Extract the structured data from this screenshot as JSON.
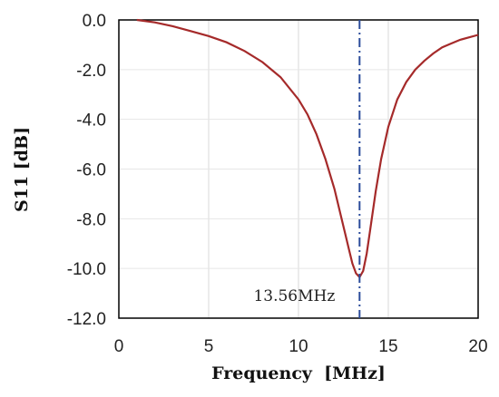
{
  "chart_data": {
    "type": "line",
    "title": "",
    "xlabel": "Frequency  [MHz]",
    "ylabel": "S11 [dB]",
    "xlim": [
      0,
      20
    ],
    "ylim": [
      -12,
      0
    ],
    "xticks": [
      0,
      5,
      10,
      15,
      20
    ],
    "yticks": [
      0,
      -2,
      -4,
      -6,
      -8,
      -10,
      -12
    ],
    "xtick_labels": [
      "0",
      "5",
      "10",
      "15",
      "20"
    ],
    "ytick_labels": [
      "0.0",
      "-2.0",
      "-4.0",
      "-6.0",
      "-8.0",
      "-10.0",
      "-12.0"
    ],
    "grid": true,
    "series": [
      {
        "color": "#a52a2a",
        "x": [
          1.0,
          2.0,
          3.0,
          4.0,
          5.0,
          6.0,
          7.0,
          8.0,
          9.0,
          10.0,
          10.5,
          11.0,
          11.5,
          12.0,
          12.5,
          12.8,
          13.0,
          13.2,
          13.4,
          13.6,
          13.8,
          14.0,
          14.3,
          14.6,
          15.0,
          15.5,
          16.0,
          16.5,
          17.0,
          17.5,
          18.0,
          18.5,
          19.0,
          19.5,
          20.0
        ],
        "y": [
          0.0,
          -0.1,
          -0.25,
          -0.45,
          -0.65,
          -0.9,
          -1.25,
          -1.7,
          -2.3,
          -3.2,
          -3.8,
          -4.6,
          -5.6,
          -6.8,
          -8.3,
          -9.2,
          -9.8,
          -10.2,
          -10.35,
          -10.1,
          -9.4,
          -8.4,
          -6.9,
          -5.6,
          -4.3,
          -3.2,
          -2.5,
          -2.0,
          -1.65,
          -1.35,
          -1.1,
          -0.95,
          -0.8,
          -0.7,
          -0.6
        ]
      }
    ],
    "marker_line": {
      "x": 13.4,
      "label": "13.56MHz",
      "color": "#2b4c9b"
    }
  }
}
